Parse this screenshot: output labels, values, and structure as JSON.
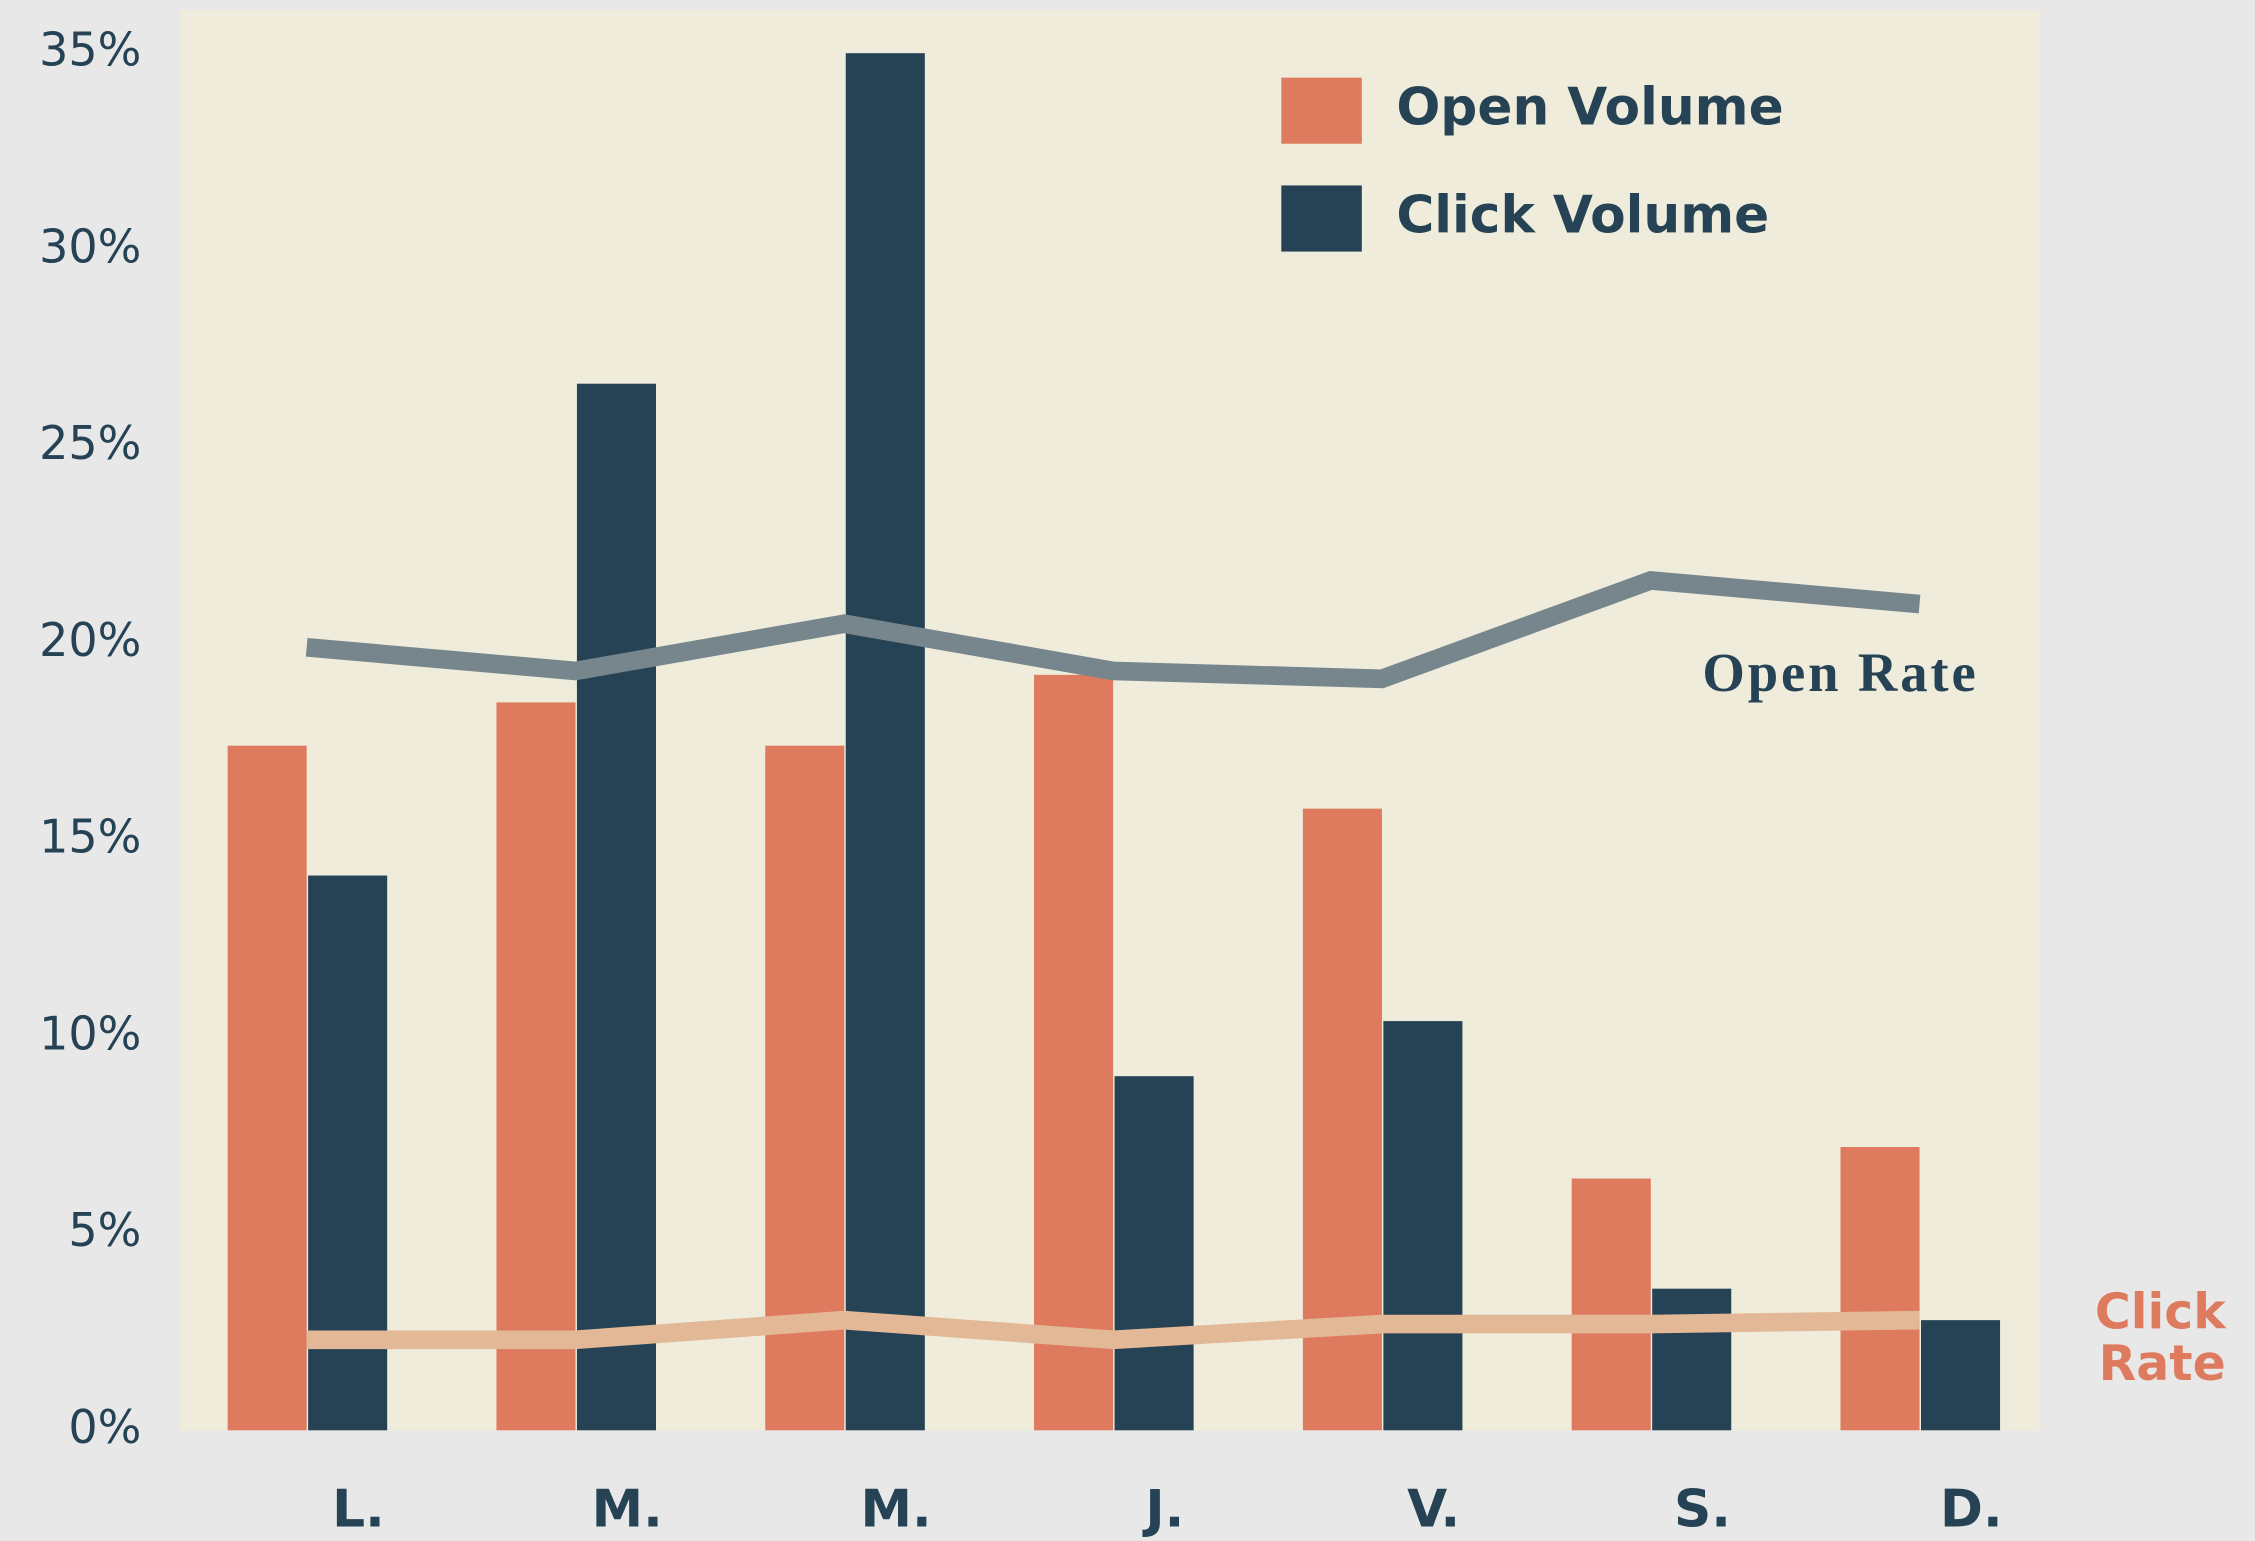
{
  "chart_data": {
    "type": "bar-line",
    "categories": [
      "L.",
      "M.",
      "M.",
      "J.",
      "V.",
      "S.",
      "D."
    ],
    "series": [
      {
        "name": "Open Volume",
        "color": "#de7b5e",
        "kind": "bar",
        "values": [
          17.4,
          18.5,
          17.4,
          19.2,
          15.8,
          6.4,
          7.2
        ]
      },
      {
        "name": "Click Volume",
        "color": "#254354",
        "kind": "bar",
        "values": [
          14.1,
          26.6,
          35,
          9.0,
          10.4,
          3.6,
          2.8
        ]
      },
      {
        "name": "Open Rate",
        "color": "#77868c",
        "kind": "line",
        "values": [
          19.9,
          19.3,
          20.5,
          19.3,
          19.1,
          21.6,
          21.0
        ]
      },
      {
        "name": "Click Rate",
        "color": "#e3b896",
        "kind": "line",
        "values": [
          2.3,
          2.3,
          2.8,
          2.3,
          2.7,
          2.7,
          2.8
        ]
      }
    ],
    "ylim": [
      0,
      35
    ],
    "yticks": [
      {
        "value": 0,
        "label": "0%"
      },
      {
        "value": 5,
        "label": "5%"
      },
      {
        "value": 10,
        "label": "10%"
      },
      {
        "value": 15,
        "label": "15%"
      },
      {
        "value": 20,
        "label": "20%"
      },
      {
        "value": 25,
        "label": "25%"
      },
      {
        "value": 30,
        "label": "30%"
      },
      {
        "value": 35,
        "label": "35%"
      }
    ],
    "legend": "top-right"
  }
}
